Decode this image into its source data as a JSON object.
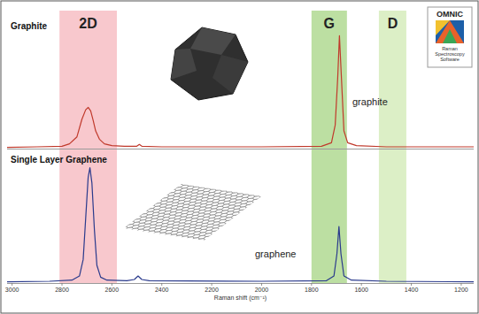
{
  "chart_data": [
    {
      "type": "line",
      "title": "Graphite",
      "xlim": [
        3020,
        1150
      ],
      "ylim": [
        0,
        100
      ],
      "tick_labels": false,
      "bands": [
        {
          "label": "2D",
          "from": 2810,
          "to": 2580,
          "color": "#f8c8cd"
        },
        {
          "label": "G",
          "from": 1800,
          "to": 1658,
          "color": "#bcdfa2"
        },
        {
          "label": "D",
          "from": 1530,
          "to": 1420,
          "color": "#dcefc6"
        }
      ],
      "series": [
        {
          "name": "graphite",
          "color": "#c0392b",
          "x": [
            3020,
            2900,
            2800,
            2770,
            2740,
            2720,
            2705,
            2695,
            2685,
            2675,
            2665,
            2650,
            2630,
            2600,
            2550,
            2500,
            2490,
            2480,
            2400,
            2000,
            1760,
            1720,
            1705,
            1695,
            1688,
            1680,
            1670,
            1655,
            1620,
            1500,
            1150
          ],
          "values": [
            1,
            1.5,
            2,
            4,
            10,
            25,
            33,
            35,
            32,
            24,
            15,
            8,
            4,
            2.5,
            2,
            2,
            3.5,
            2,
            1.5,
            1.5,
            2,
            5,
            20,
            60,
            96,
            60,
            15,
            5,
            2.5,
            1.5,
            1.5
          ]
        }
      ]
    },
    {
      "type": "line",
      "title": "Single Layer Graphene",
      "xlabel": "Raman shift (cm⁻¹)",
      "xlim": [
        3020,
        1150
      ],
      "xticks": [
        3000,
        2800,
        2600,
        2400,
        2200,
        2000,
        1800,
        1600,
        1400,
        1200
      ],
      "ylim": [
        0,
        100
      ],
      "tick_labels": "x",
      "series": [
        {
          "name": "graphene",
          "color": "#2a3a8c",
          "x": [
            3020,
            2850,
            2760,
            2730,
            2715,
            2705,
            2695,
            2688,
            2680,
            2670,
            2660,
            2645,
            2620,
            2540,
            2510,
            2495,
            2480,
            2450,
            2000,
            1740,
            1710,
            1698,
            1690,
            1682,
            1670,
            1640,
            1500,
            1150
          ],
          "values": [
            1,
            1.5,
            2.5,
            6,
            20,
            55,
            90,
            98,
            85,
            45,
            15,
            5,
            2.5,
            2,
            3,
            6,
            3,
            2,
            1.5,
            2,
            6,
            25,
            48,
            25,
            6,
            2.5,
            1.5,
            1
          ]
        }
      ]
    }
  ],
  "logo": {
    "title": "OMNIC",
    "text": "Raman Spectroscopy Software"
  }
}
